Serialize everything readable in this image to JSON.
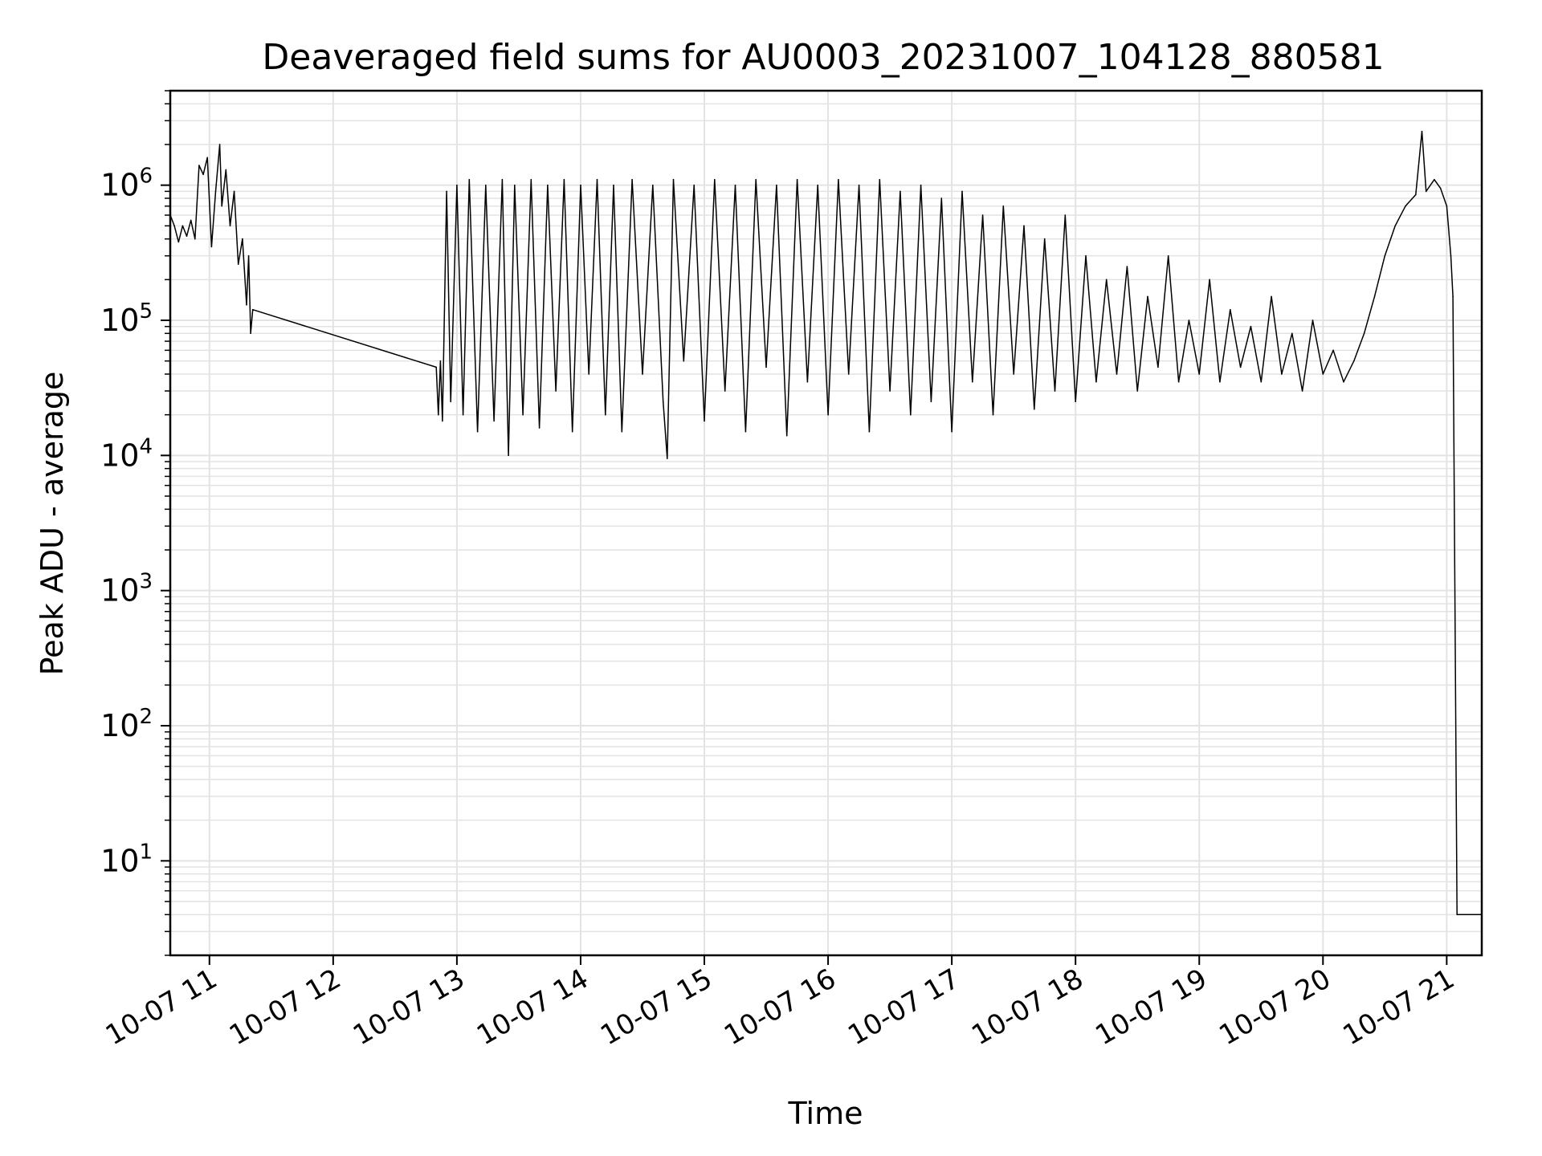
{
  "chart_data": {
    "type": "line",
    "title": "Deaveraged field sums for AU0003_20231007_104128_880581",
    "xlabel": "Time",
    "ylabel": "Peak ADU - average",
    "yscale": "log",
    "ylim": [
      2,
      5000000
    ],
    "xlim": [
      "2023-10-07 10:41",
      "2023-10-07 21:17"
    ],
    "grid": "major and minor",
    "x_ticks": [
      {
        "label": "10-07 11",
        "time": "2023-10-07 11:00"
      },
      {
        "label": "10-07 12",
        "time": "2023-10-07 12:00"
      },
      {
        "label": "10-07 13",
        "time": "2023-10-07 13:00"
      },
      {
        "label": "10-07 14",
        "time": "2023-10-07 14:00"
      },
      {
        "label": "10-07 15",
        "time": "2023-10-07 15:00"
      },
      {
        "label": "10-07 16",
        "time": "2023-10-07 16:00"
      },
      {
        "label": "10-07 17",
        "time": "2023-10-07 17:00"
      },
      {
        "label": "10-07 18",
        "time": "2023-10-07 18:00"
      },
      {
        "label": "10-07 19",
        "time": "2023-10-07 19:00"
      },
      {
        "label": "10-07 20",
        "time": "2023-10-07 20:00"
      },
      {
        "label": "10-07 21",
        "time": "2023-10-07 21:00"
      }
    ],
    "y_ticks": [
      {
        "base": "10",
        "exp": "1",
        "value": 10
      },
      {
        "base": "10",
        "exp": "2",
        "value": 100
      },
      {
        "base": "10",
        "exp": "3",
        "value": 1000
      },
      {
        "base": "10",
        "exp": "4",
        "value": 10000
      },
      {
        "base": "10",
        "exp": "5",
        "value": 100000
      },
      {
        "base": "10",
        "exp": "6",
        "value": 1000000
      }
    ],
    "series": [
      {
        "color": "#000000",
        "points": [
          [
            "2023-10-07 10:41",
            600000
          ],
          [
            "2023-10-07 10:43",
            500000
          ],
          [
            "2023-10-07 10:45",
            380000
          ],
          [
            "2023-10-07 10:47",
            500000
          ],
          [
            "2023-10-07 10:49",
            420000
          ],
          [
            "2023-10-07 10:51",
            550000
          ],
          [
            "2023-10-07 10:53",
            400000
          ],
          [
            "2023-10-07 10:55",
            1400000
          ],
          [
            "2023-10-07 10:57",
            1200000
          ],
          [
            "2023-10-07 10:59",
            1600000
          ],
          [
            "2023-10-07 11:01",
            350000
          ],
          [
            "2023-10-07 11:03",
            900000
          ],
          [
            "2023-10-07 11:05",
            2000000
          ],
          [
            "2023-10-07 11:06",
            700000
          ],
          [
            "2023-10-07 11:08",
            1300000
          ],
          [
            "2023-10-07 11:10",
            500000
          ],
          [
            "2023-10-07 11:12",
            900000
          ],
          [
            "2023-10-07 11:14",
            260000
          ],
          [
            "2023-10-07 11:16",
            400000
          ],
          [
            "2023-10-07 11:18",
            130000
          ],
          [
            "2023-10-07 11:19",
            300000
          ],
          [
            "2023-10-07 11:20",
            80000
          ],
          [
            "2023-10-07 11:21",
            120000
          ],
          [
            "2023-10-07 12:50",
            45000
          ],
          [
            "2023-10-07 12:51",
            20000
          ],
          [
            "2023-10-07 12:52",
            50000
          ],
          [
            "2023-10-07 12:53",
            18000
          ],
          [
            "2023-10-07 12:55",
            900000
          ],
          [
            "2023-10-07 12:57",
            25000
          ],
          [
            "2023-10-07 13:00",
            1000000
          ],
          [
            "2023-10-07 13:03",
            20000
          ],
          [
            "2023-10-07 13:06",
            1100000
          ],
          [
            "2023-10-07 13:10",
            15000
          ],
          [
            "2023-10-07 13:14",
            1000000
          ],
          [
            "2023-10-07 13:18",
            18000
          ],
          [
            "2023-10-07 13:22",
            1100000
          ],
          [
            "2023-10-07 13:25",
            10000
          ],
          [
            "2023-10-07 13:28",
            1000000
          ],
          [
            "2023-10-07 13:32",
            20000
          ],
          [
            "2023-10-07 13:36",
            1100000
          ],
          [
            "2023-10-07 13:40",
            16000
          ],
          [
            "2023-10-07 13:44",
            1000000
          ],
          [
            "2023-10-07 13:48",
            30000
          ],
          [
            "2023-10-07 13:52",
            1100000
          ],
          [
            "2023-10-07 13:56",
            15000
          ],
          [
            "2023-10-07 14:00",
            1000000
          ],
          [
            "2023-10-07 14:04",
            40000
          ],
          [
            "2023-10-07 14:08",
            1100000
          ],
          [
            "2023-10-07 14:12",
            20000
          ],
          [
            "2023-10-07 14:16",
            1000000
          ],
          [
            "2023-10-07 14:20",
            15000
          ],
          [
            "2023-10-07 14:25",
            1100000
          ],
          [
            "2023-10-07 14:30",
            40000
          ],
          [
            "2023-10-07 14:35",
            1000000
          ],
          [
            "2023-10-07 14:40",
            25000
          ],
          [
            "2023-10-07 14:42",
            9500
          ],
          [
            "2023-10-07 14:45",
            1100000
          ],
          [
            "2023-10-07 14:50",
            50000
          ],
          [
            "2023-10-07 14:55",
            1000000
          ],
          [
            "2023-10-07 15:00",
            18000
          ],
          [
            "2023-10-07 15:05",
            1100000
          ],
          [
            "2023-10-07 15:10",
            30000
          ],
          [
            "2023-10-07 15:15",
            1000000
          ],
          [
            "2023-10-07 15:20",
            15000
          ],
          [
            "2023-10-07 15:25",
            1100000
          ],
          [
            "2023-10-07 15:30",
            45000
          ],
          [
            "2023-10-07 15:35",
            1000000
          ],
          [
            "2023-10-07 15:40",
            14000
          ],
          [
            "2023-10-07 15:45",
            1100000
          ],
          [
            "2023-10-07 15:50",
            35000
          ],
          [
            "2023-10-07 15:55",
            1000000
          ],
          [
            "2023-10-07 16:00",
            20000
          ],
          [
            "2023-10-07 16:05",
            1100000
          ],
          [
            "2023-10-07 16:10",
            40000
          ],
          [
            "2023-10-07 16:15",
            1000000
          ],
          [
            "2023-10-07 16:20",
            15000
          ],
          [
            "2023-10-07 16:25",
            1100000
          ],
          [
            "2023-10-07 16:30",
            30000
          ],
          [
            "2023-10-07 16:35",
            900000
          ],
          [
            "2023-10-07 16:40",
            20000
          ],
          [
            "2023-10-07 16:45",
            1000000
          ],
          [
            "2023-10-07 16:50",
            25000
          ],
          [
            "2023-10-07 16:55",
            800000
          ],
          [
            "2023-10-07 17:00",
            15000
          ],
          [
            "2023-10-07 17:05",
            900000
          ],
          [
            "2023-10-07 17:10",
            35000
          ],
          [
            "2023-10-07 17:15",
            600000
          ],
          [
            "2023-10-07 17:20",
            20000
          ],
          [
            "2023-10-07 17:25",
            700000
          ],
          [
            "2023-10-07 17:30",
            40000
          ],
          [
            "2023-10-07 17:35",
            500000
          ],
          [
            "2023-10-07 17:40",
            22000
          ],
          [
            "2023-10-07 17:45",
            400000
          ],
          [
            "2023-10-07 17:50",
            30000
          ],
          [
            "2023-10-07 17:55",
            600000
          ],
          [
            "2023-10-07 18:00",
            25000
          ],
          [
            "2023-10-07 18:05",
            300000
          ],
          [
            "2023-10-07 18:10",
            35000
          ],
          [
            "2023-10-07 18:15",
            200000
          ],
          [
            "2023-10-07 18:20",
            40000
          ],
          [
            "2023-10-07 18:25",
            250000
          ],
          [
            "2023-10-07 18:30",
            30000
          ],
          [
            "2023-10-07 18:35",
            150000
          ],
          [
            "2023-10-07 18:40",
            45000
          ],
          [
            "2023-10-07 18:45",
            300000
          ],
          [
            "2023-10-07 18:50",
            35000
          ],
          [
            "2023-10-07 18:55",
            100000
          ],
          [
            "2023-10-07 19:00",
            40000
          ],
          [
            "2023-10-07 19:05",
            200000
          ],
          [
            "2023-10-07 19:10",
            35000
          ],
          [
            "2023-10-07 19:15",
            120000
          ],
          [
            "2023-10-07 19:20",
            45000
          ],
          [
            "2023-10-07 19:25",
            90000
          ],
          [
            "2023-10-07 19:30",
            35000
          ],
          [
            "2023-10-07 19:35",
            150000
          ],
          [
            "2023-10-07 19:40",
            40000
          ],
          [
            "2023-10-07 19:45",
            80000
          ],
          [
            "2023-10-07 19:50",
            30000
          ],
          [
            "2023-10-07 19:55",
            100000
          ],
          [
            "2023-10-07 20:00",
            40000
          ],
          [
            "2023-10-07 20:05",
            60000
          ],
          [
            "2023-10-07 20:10",
            35000
          ],
          [
            "2023-10-07 20:15",
            50000
          ],
          [
            "2023-10-07 20:20",
            80000
          ],
          [
            "2023-10-07 20:25",
            150000
          ],
          [
            "2023-10-07 20:30",
            300000
          ],
          [
            "2023-10-07 20:35",
            500000
          ],
          [
            "2023-10-07 20:40",
            700000
          ],
          [
            "2023-10-07 20:45",
            850000
          ],
          [
            "2023-10-07 20:48",
            2500000
          ],
          [
            "2023-10-07 20:50",
            900000
          ],
          [
            "2023-10-07 20:54",
            1100000
          ],
          [
            "2023-10-07 20:57",
            950000
          ],
          [
            "2023-10-07 21:00",
            700000
          ],
          [
            "2023-10-07 21:02",
            300000
          ],
          [
            "2023-10-07 21:03",
            150000
          ],
          [
            "2023-10-07 21:05",
            4
          ],
          [
            "2023-10-07 21:17",
            4
          ]
        ]
      }
    ]
  }
}
